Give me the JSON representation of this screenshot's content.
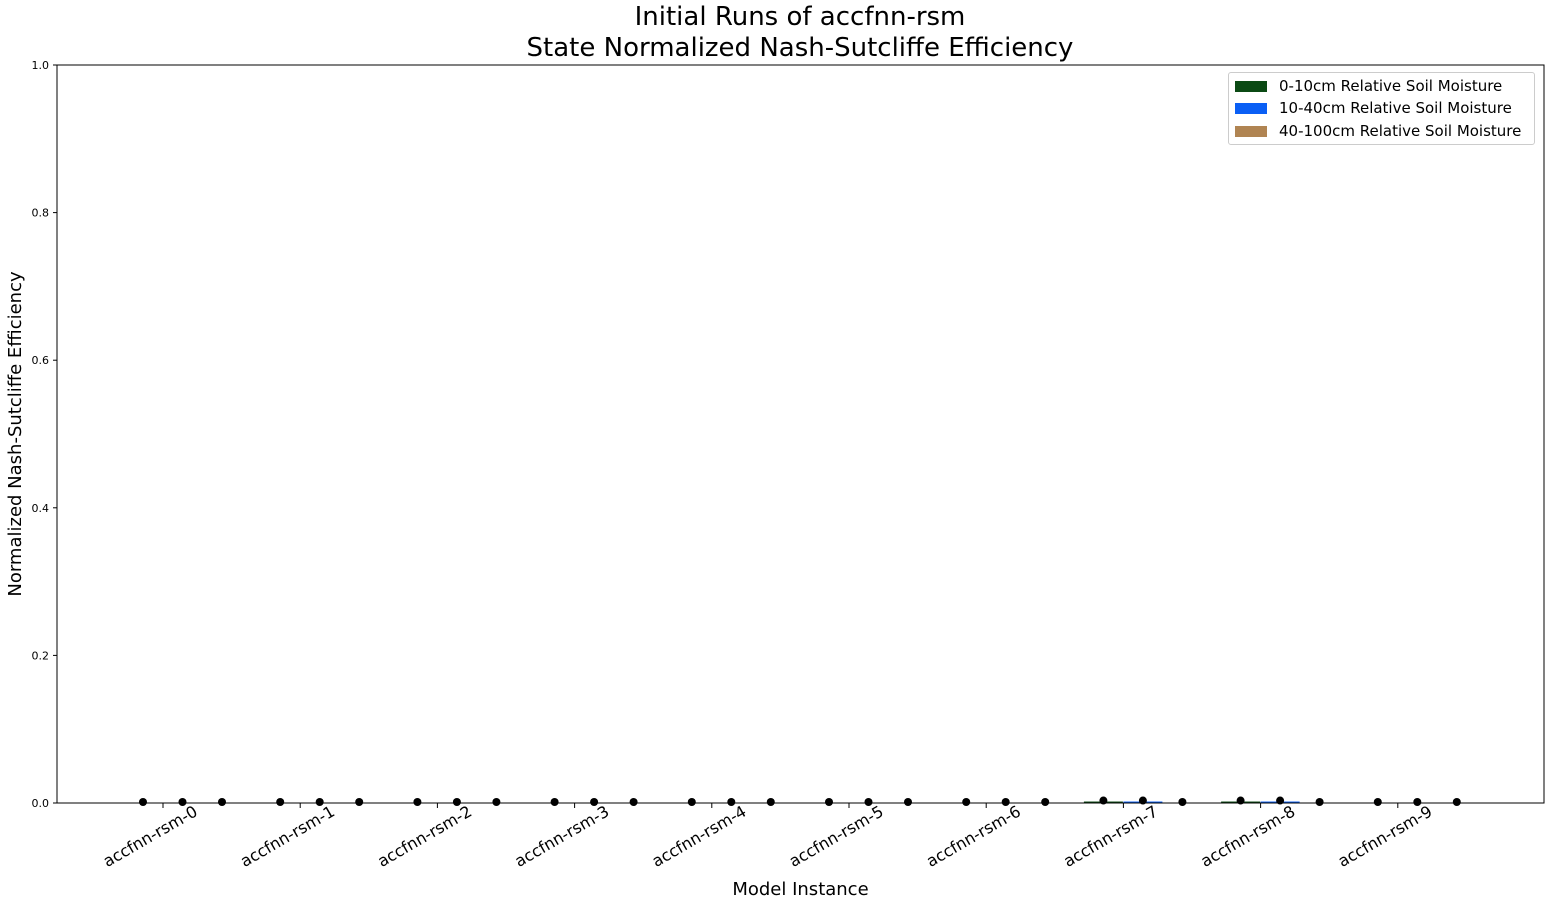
{
  "chart_data": {
    "type": "bar",
    "title_line1": "Initial Runs of accfnn-rsm",
    "title_line2": "State Normalized Nash-Sutcliffe Efficiency",
    "xlabel": "Model Instance",
    "ylabel": "Normalized Nash-Sutcliffe Efficiency",
    "ylim": [
      0,
      1
    ],
    "yticks": [
      "0.0",
      "0.2",
      "0.4",
      "0.6",
      "0.8",
      "1.0"
    ],
    "categories": [
      "accfnn-rsm-0",
      "accfnn-rsm-1",
      "accfnn-rsm-2",
      "accfnn-rsm-3",
      "accfnn-rsm-4",
      "accfnn-rsm-5",
      "accfnn-rsm-6",
      "accfnn-rsm-7",
      "accfnn-rsm-8",
      "accfnn-rsm-9"
    ],
    "series": [
      {
        "name": "0-10cm Relative Soil Moisture",
        "color": "#0b4a14",
        "values": [
          0,
          0,
          0,
          0,
          0,
          0,
          0,
          0.002,
          0.002,
          0
        ]
      },
      {
        "name": "10-40cm Relative Soil Moisture",
        "color": "#0a5ff5",
        "values": [
          0,
          0,
          0,
          0,
          0,
          0,
          0,
          0.002,
          0.002,
          0
        ]
      },
      {
        "name": "40-100cm Relative Soil Moisture",
        "color": "#b08452",
        "values": [
          0,
          0,
          0,
          0,
          0,
          0,
          0,
          0,
          0,
          0
        ]
      }
    ],
    "grid": false,
    "legend_position": "top-right",
    "marker_color": "#000000"
  }
}
